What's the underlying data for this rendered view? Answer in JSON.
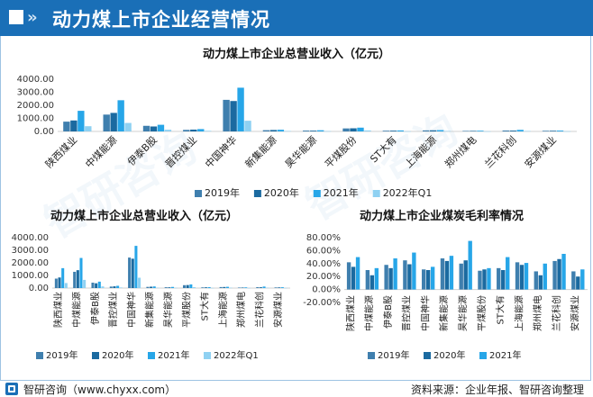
{
  "header": {
    "title": "动力煤上市企业经营情况"
  },
  "footer": {
    "left": "智研咨询（www.chyxx.com）",
    "right": "资料来源：企业年报、智研咨询整理"
  },
  "colors": {
    "s2019": "#3f7fae",
    "s2020": "#1b6aa0",
    "s2021": "#27a6e8",
    "s2022": "#8fd1f2",
    "header": "#1a6fb7"
  },
  "chart_data": [
    {
      "type": "bar",
      "title": "动力煤上市企业总营业收入（亿元）",
      "categories": [
        "陕西煤业",
        "中煤能源",
        "伊泰B股",
        "晋控煤业",
        "中国神华",
        "新集能源",
        "昊华能源",
        "平煤股份",
        "ST大有",
        "上海能源",
        "郑州煤电",
        "兰花科创",
        "安源煤业"
      ],
      "series": [
        {
          "name": "2019年",
          "values": [
            750,
            1290,
            430,
            120,
            2420,
            95,
            65,
            230,
            55,
            80,
            40,
            70,
            50
          ]
        },
        {
          "name": "2020年",
          "values": [
            840,
            1420,
            380,
            140,
            2330,
            110,
            60,
            240,
            60,
            85,
            42,
            65,
            52
          ]
        },
        {
          "name": "2021年",
          "values": [
            1580,
            2390,
            510,
            180,
            3350,
            130,
            90,
            290,
            75,
            100,
            55,
            120,
            65
          ]
        },
        {
          "name": "2022年Q1",
          "values": [
            400,
            650,
            130,
            45,
            820,
            30,
            20,
            75,
            12,
            28,
            10,
            30,
            13
          ]
        }
      ],
      "yticks": [
        "4000.00",
        "3000.00",
        "2000.00",
        "1000.00",
        "0.00"
      ],
      "ylim": [
        0,
        4000
      ],
      "legend": "bottom"
    },
    {
      "type": "bar",
      "title": "动力煤上市企业总营业收入（亿元）",
      "categories": [
        "陕西煤业",
        "中煤能源",
        "伊泰B股",
        "晋控煤业",
        "中国神华",
        "新集能源",
        "昊华能源",
        "平煤股份",
        "ST大有",
        "上海能源",
        "郑州煤电",
        "兰花科创",
        "安源煤业"
      ],
      "series": [
        {
          "name": "2019年",
          "values": [
            750,
            1290,
            430,
            120,
            2420,
            95,
            65,
            230,
            55,
            80,
            40,
            70,
            50
          ]
        },
        {
          "name": "2020年",
          "values": [
            840,
            1420,
            380,
            140,
            2330,
            110,
            60,
            240,
            60,
            85,
            42,
            65,
            52
          ]
        },
        {
          "name": "2021年",
          "values": [
            1580,
            2390,
            510,
            180,
            3350,
            130,
            90,
            290,
            75,
            100,
            55,
            120,
            65
          ]
        },
        {
          "name": "2022年Q1",
          "values": [
            400,
            650,
            130,
            45,
            820,
            30,
            20,
            75,
            12,
            28,
            10,
            30,
            13
          ]
        }
      ],
      "yticks": [
        "4000.00",
        "3000.00",
        "2000.00",
        "1000.00",
        "0.00"
      ],
      "ylim": [
        0,
        4000
      ],
      "legend": "bottom"
    },
    {
      "type": "bar",
      "title": "动力煤上市企业煤炭毛利率情况",
      "categories": [
        "陕西煤业",
        "中煤能源",
        "伊泰B股",
        "晋控煤业",
        "中国神华",
        "新集能源",
        "昊华能源",
        "平煤股份",
        "ST大有",
        "上海能源",
        "郑州煤电",
        "兰花科创",
        "安源煤业"
      ],
      "series": [
        {
          "name": "2019年",
          "values": [
            42,
            30,
            38,
            45,
            31,
            48,
            40,
            29,
            33,
            42,
            28,
            44,
            28
          ]
        },
        {
          "name": "2020年",
          "values": [
            35,
            22,
            33,
            39,
            30,
            44,
            45,
            31,
            30,
            38,
            22,
            47,
            20
          ]
        },
        {
          "name": "2021年",
          "values": [
            50,
            33,
            48,
            57,
            35,
            52,
            75,
            33,
            50,
            41,
            40,
            55,
            31
          ]
        }
      ],
      "yticks": [
        "80.00%",
        "60.00%",
        "40.00%",
        "20.00%",
        "0.00%",
        "-20.00%"
      ],
      "ylim": [
        -20,
        80
      ],
      "legend": "bottom"
    }
  ]
}
